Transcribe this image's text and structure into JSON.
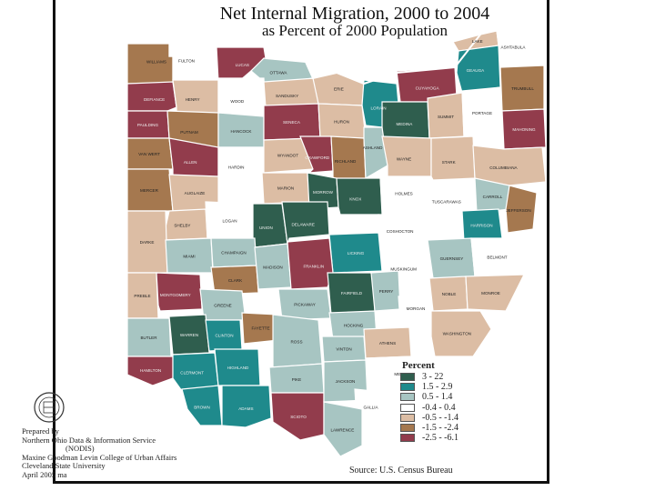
{
  "title": {
    "line1": "Net Internal Migration, 2000 to 2004",
    "line2": "as Percent of 2000 Population"
  },
  "legend": {
    "title": "Percent",
    "classes": [
      {
        "label": "3 - 22",
        "color": "#2f5e4e"
      },
      {
        "label": "1.5 - 2.9",
        "color": "#1f8a8c"
      },
      {
        "label": "0.5 - 1.4",
        "color": "#a7c5c2"
      },
      {
        "label": "-0.4 - 0.4",
        "color": "#ffffff"
      },
      {
        "label": "-0.5 - -1.4",
        "color": "#dcbda4"
      },
      {
        "label": "-1.5 - -2.4",
        "color": "#a5784f"
      },
      {
        "label": "-2.5 - -6.1",
        "color": "#923c4c"
      }
    ]
  },
  "credits": {
    "line1": "Prepared by",
    "line2": "Northern Ohio Data & Information Service",
    "line3": "(NODIS)",
    "line4": "Maxine Goodman Levin College of Urban Affairs",
    "line5": "Cleveland State University",
    "line6": "April 2005 ma"
  },
  "source": "Source: U.S. Census Bureau",
  "counties": [
    {
      "name": "WILLIAMS",
      "cls": 5
    },
    {
      "name": "FULTON",
      "cls": 3
    },
    {
      "name": "LUCAS",
      "cls": 6
    },
    {
      "name": "OTTAWA",
      "cls": 2
    },
    {
      "name": "DEFIANCE",
      "cls": 6
    },
    {
      "name": "HENRY",
      "cls": 4
    },
    {
      "name": "WOOD",
      "cls": 3
    },
    {
      "name": "SANDUSKY",
      "cls": 4
    },
    {
      "name": "ERIE",
      "cls": 4
    },
    {
      "name": "LORAIN",
      "cls": 1
    },
    {
      "name": "CUYAHOGA",
      "cls": 6
    },
    {
      "name": "LAKE",
      "cls": 4
    },
    {
      "name": "ASHTABULA",
      "cls": 3
    },
    {
      "name": "GEAUGA",
      "cls": 1
    },
    {
      "name": "PAULDING",
      "cls": 6
    },
    {
      "name": "PUTNAM",
      "cls": 5
    },
    {
      "name": "HANCOCK",
      "cls": 2
    },
    {
      "name": "SENECA",
      "cls": 6
    },
    {
      "name": "HURON",
      "cls": 4
    },
    {
      "name": "MEDINA",
      "cls": 0
    },
    {
      "name": "SUMMIT",
      "cls": 4
    },
    {
      "name": "PORTAGE",
      "cls": 3
    },
    {
      "name": "TRUMBULL",
      "cls": 5
    },
    {
      "name": "MAHONING",
      "cls": 6
    },
    {
      "name": "VAN WERT",
      "cls": 5
    },
    {
      "name": "ALLEN",
      "cls": 6
    },
    {
      "name": "HARDIN",
      "cls": 3
    },
    {
      "name": "WYANDOT",
      "cls": 4
    },
    {
      "name": "CRAWFORD",
      "cls": 6
    },
    {
      "name": "RICHLAND",
      "cls": 5
    },
    {
      "name": "ASHLAND",
      "cls": 2
    },
    {
      "name": "WAYNE",
      "cls": 4
    },
    {
      "name": "STARK",
      "cls": 4
    },
    {
      "name": "COLUMBIANA",
      "cls": 4
    },
    {
      "name": "MERCER",
      "cls": 5
    },
    {
      "name": "AUGLAIZE",
      "cls": 4
    },
    {
      "name": "MARION",
      "cls": 4
    },
    {
      "name": "MORROW",
      "cls": 0
    },
    {
      "name": "KNOX",
      "cls": 0
    },
    {
      "name": "HOLMES",
      "cls": 3
    },
    {
      "name": "TUSCARAWAS",
      "cls": 3
    },
    {
      "name": "CARROLL",
      "cls": 2
    },
    {
      "name": "SHELBY",
      "cls": 4
    },
    {
      "name": "LOGAN",
      "cls": 3
    },
    {
      "name": "UNION",
      "cls": 0
    },
    {
      "name": "DELAWARE",
      "cls": 0
    },
    {
      "name": "LICKING",
      "cls": 1
    },
    {
      "name": "COSHOCTON",
      "cls": 3
    },
    {
      "name": "HARRISON",
      "cls": 1
    },
    {
      "name": "JEFFERSON",
      "cls": 5
    },
    {
      "name": "DARKE",
      "cls": 4
    },
    {
      "name": "MIAMI",
      "cls": 2
    },
    {
      "name": "CHAMPAIGN",
      "cls": 2
    },
    {
      "name": "CLARK",
      "cls": 5
    },
    {
      "name": "MADISON",
      "cls": 2
    },
    {
      "name": "FRANKLIN",
      "cls": 6
    },
    {
      "name": "FAIRFIELD",
      "cls": 0
    },
    {
      "name": "PERRY",
      "cls": 2
    },
    {
      "name": "MUSKINGUM",
      "cls": 3
    },
    {
      "name": "GUERNSEY",
      "cls": 2
    },
    {
      "name": "BELMONT",
      "cls": 3
    },
    {
      "name": "PREBLE",
      "cls": 4
    },
    {
      "name": "MONTGOMERY",
      "cls": 6
    },
    {
      "name": "GREENE",
      "cls": 2
    },
    {
      "name": "FAYETTE",
      "cls": 5
    },
    {
      "name": "PICKAWAY",
      "cls": 2
    },
    {
      "name": "HOCKING",
      "cls": 2
    },
    {
      "name": "MORGAN",
      "cls": 3
    },
    {
      "name": "NOBLE",
      "cls": 4
    },
    {
      "name": "MONROE",
      "cls": 4
    },
    {
      "name": "WASHINGTON",
      "cls": 4
    },
    {
      "name": "BUTLER",
      "cls": 2
    },
    {
      "name": "WARREN",
      "cls": 0
    },
    {
      "name": "CLINTON",
      "cls": 1
    },
    {
      "name": "ROSS",
      "cls": 2
    },
    {
      "name": "VINTON",
      "cls": 2
    },
    {
      "name": "ATHENS",
      "cls": 4
    },
    {
      "name": "MEIGS",
      "cls": 3
    },
    {
      "name": "HAMILTON",
      "cls": 6
    },
    {
      "name": "CLERMONT",
      "cls": 1
    },
    {
      "name": "BROWN",
      "cls": 1
    },
    {
      "name": "HIGHLAND",
      "cls": 1
    },
    {
      "name": "ADAMS",
      "cls": 1
    },
    {
      "name": "PIKE",
      "cls": 2
    },
    {
      "name": "SCIOTO",
      "cls": 6
    },
    {
      "name": "JACKSON",
      "cls": 2
    },
    {
      "name": "GALLIA",
      "cls": 3
    },
    {
      "name": "LAWRENCE",
      "cls": 2
    }
  ]
}
